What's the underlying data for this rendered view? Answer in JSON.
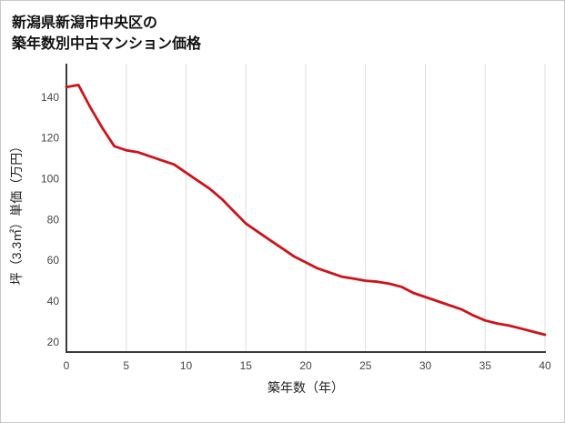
{
  "page": {
    "background": "#ffffff",
    "border_color": "#c9c9c9"
  },
  "title": {
    "line1": "新潟県新潟市中央区の",
    "line2": "築年数別中古マンション価格"
  },
  "chart_data": {
    "type": "line",
    "title": "新潟県新潟市中央区の築年数別中古マンション価格",
    "xlabel": "築年数（年）",
    "ylabel": "坪（3.3㎡）単価（万円）",
    "x": [
      0,
      1,
      2,
      3,
      4,
      5,
      6,
      7,
      8,
      9,
      10,
      11,
      12,
      13,
      14,
      15,
      16,
      17,
      18,
      19,
      20,
      21,
      22,
      23,
      24,
      25,
      26,
      27,
      28,
      29,
      30,
      31,
      32,
      33,
      34,
      35,
      36,
      37,
      38,
      39,
      40
    ],
    "values": [
      145,
      146,
      135,
      125,
      116,
      114,
      113,
      111,
      109,
      107,
      103,
      99,
      95,
      90,
      84,
      78,
      74,
      70,
      66,
      62,
      59,
      56,
      54,
      52,
      51,
      50,
      49.5,
      48.5,
      47,
      44,
      42,
      40,
      38,
      36,
      33,
      30.5,
      29,
      28,
      26.5,
      25,
      23.5
    ],
    "xlim": [
      0,
      40
    ],
    "ylim": [
      15,
      152
    ],
    "x_ticks": [
      0,
      5,
      10,
      15,
      20,
      25,
      30,
      35,
      40
    ],
    "y_ticks": [
      20,
      40,
      60,
      80,
      100,
      120,
      140
    ],
    "grid": "vertical-only",
    "legend": "none",
    "line_color": "#d0121a",
    "axis_color": "#3a3a3a",
    "grid_color": "#dedede",
    "tick_color": "#444444"
  }
}
